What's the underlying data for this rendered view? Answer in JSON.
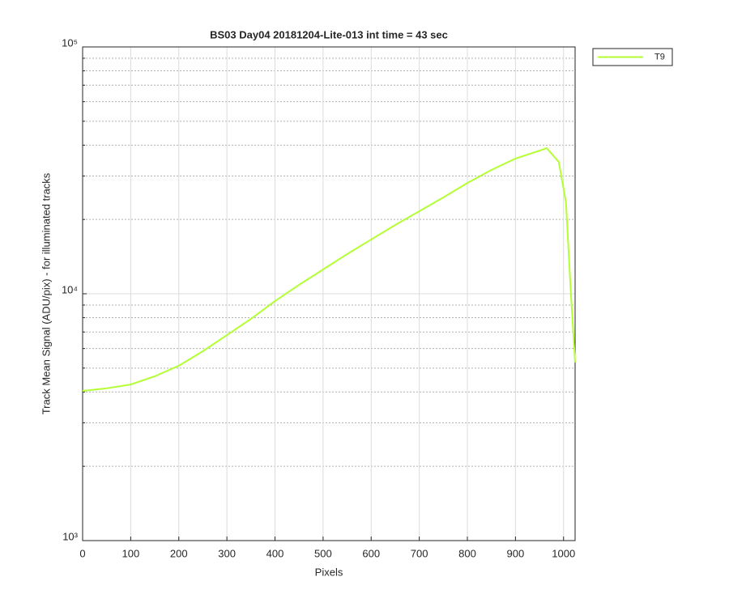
{
  "chart_data": {
    "type": "line",
    "title": "BS03 Day04 20181204-Lite-013 int time = 43 sec",
    "x_label": "Pixels",
    "y_label": "Track Mean Signal (ADU/pix) - for illuminated tracks",
    "x": [
      0,
      50,
      100,
      150,
      200,
      250,
      300,
      350,
      400,
      450,
      500,
      550,
      600,
      650,
      700,
      750,
      800,
      850,
      900,
      950,
      965,
      990,
      1005,
      1015,
      1024
    ],
    "series": [
      {
        "name": "T9",
        "color": "#b3ff33",
        "values": [
          4040,
          4140,
          4290,
          4630,
          5110,
          5850,
          6800,
          7910,
          9340,
          10870,
          12540,
          14480,
          16590,
          19000,
          21600,
          24550,
          28100,
          31750,
          35300,
          38000,
          38900,
          34200,
          23500,
          10230,
          5270
        ]
      }
    ],
    "xlim": [
      0,
      1024
    ],
    "xticks": [
      0,
      100,
      200,
      300,
      400,
      500,
      600,
      700,
      800,
      900,
      1000
    ],
    "ylim": [
      1000,
      100000
    ],
    "yticks": [
      {
        "value": 1000,
        "label": "10³"
      },
      {
        "value": 10000,
        "label": "10⁴"
      },
      {
        "value": 100000,
        "label": "10⁵"
      }
    ],
    "minor_yticks": [
      2000,
      3000,
      4000,
      5000,
      6000,
      7000,
      8000,
      9000,
      20000,
      30000,
      40000,
      50000,
      60000,
      70000,
      80000,
      90000
    ],
    "log_y": true,
    "grid": true,
    "legend": "outside-top-right"
  }
}
